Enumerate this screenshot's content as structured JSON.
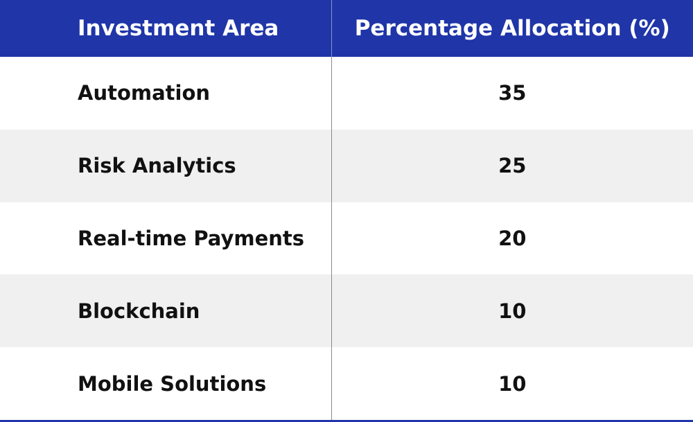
{
  "table": {
    "header": [
      "Investment Area",
      "Percentage Allocation (%)"
    ],
    "rows": [
      [
        "Automation",
        35
      ],
      [
        "Risk Analytics",
        25
      ],
      [
        "Real-time Payments",
        20
      ],
      [
        "Blockchain",
        10
      ],
      [
        "Mobile Solutions",
        10
      ]
    ]
  }
}
